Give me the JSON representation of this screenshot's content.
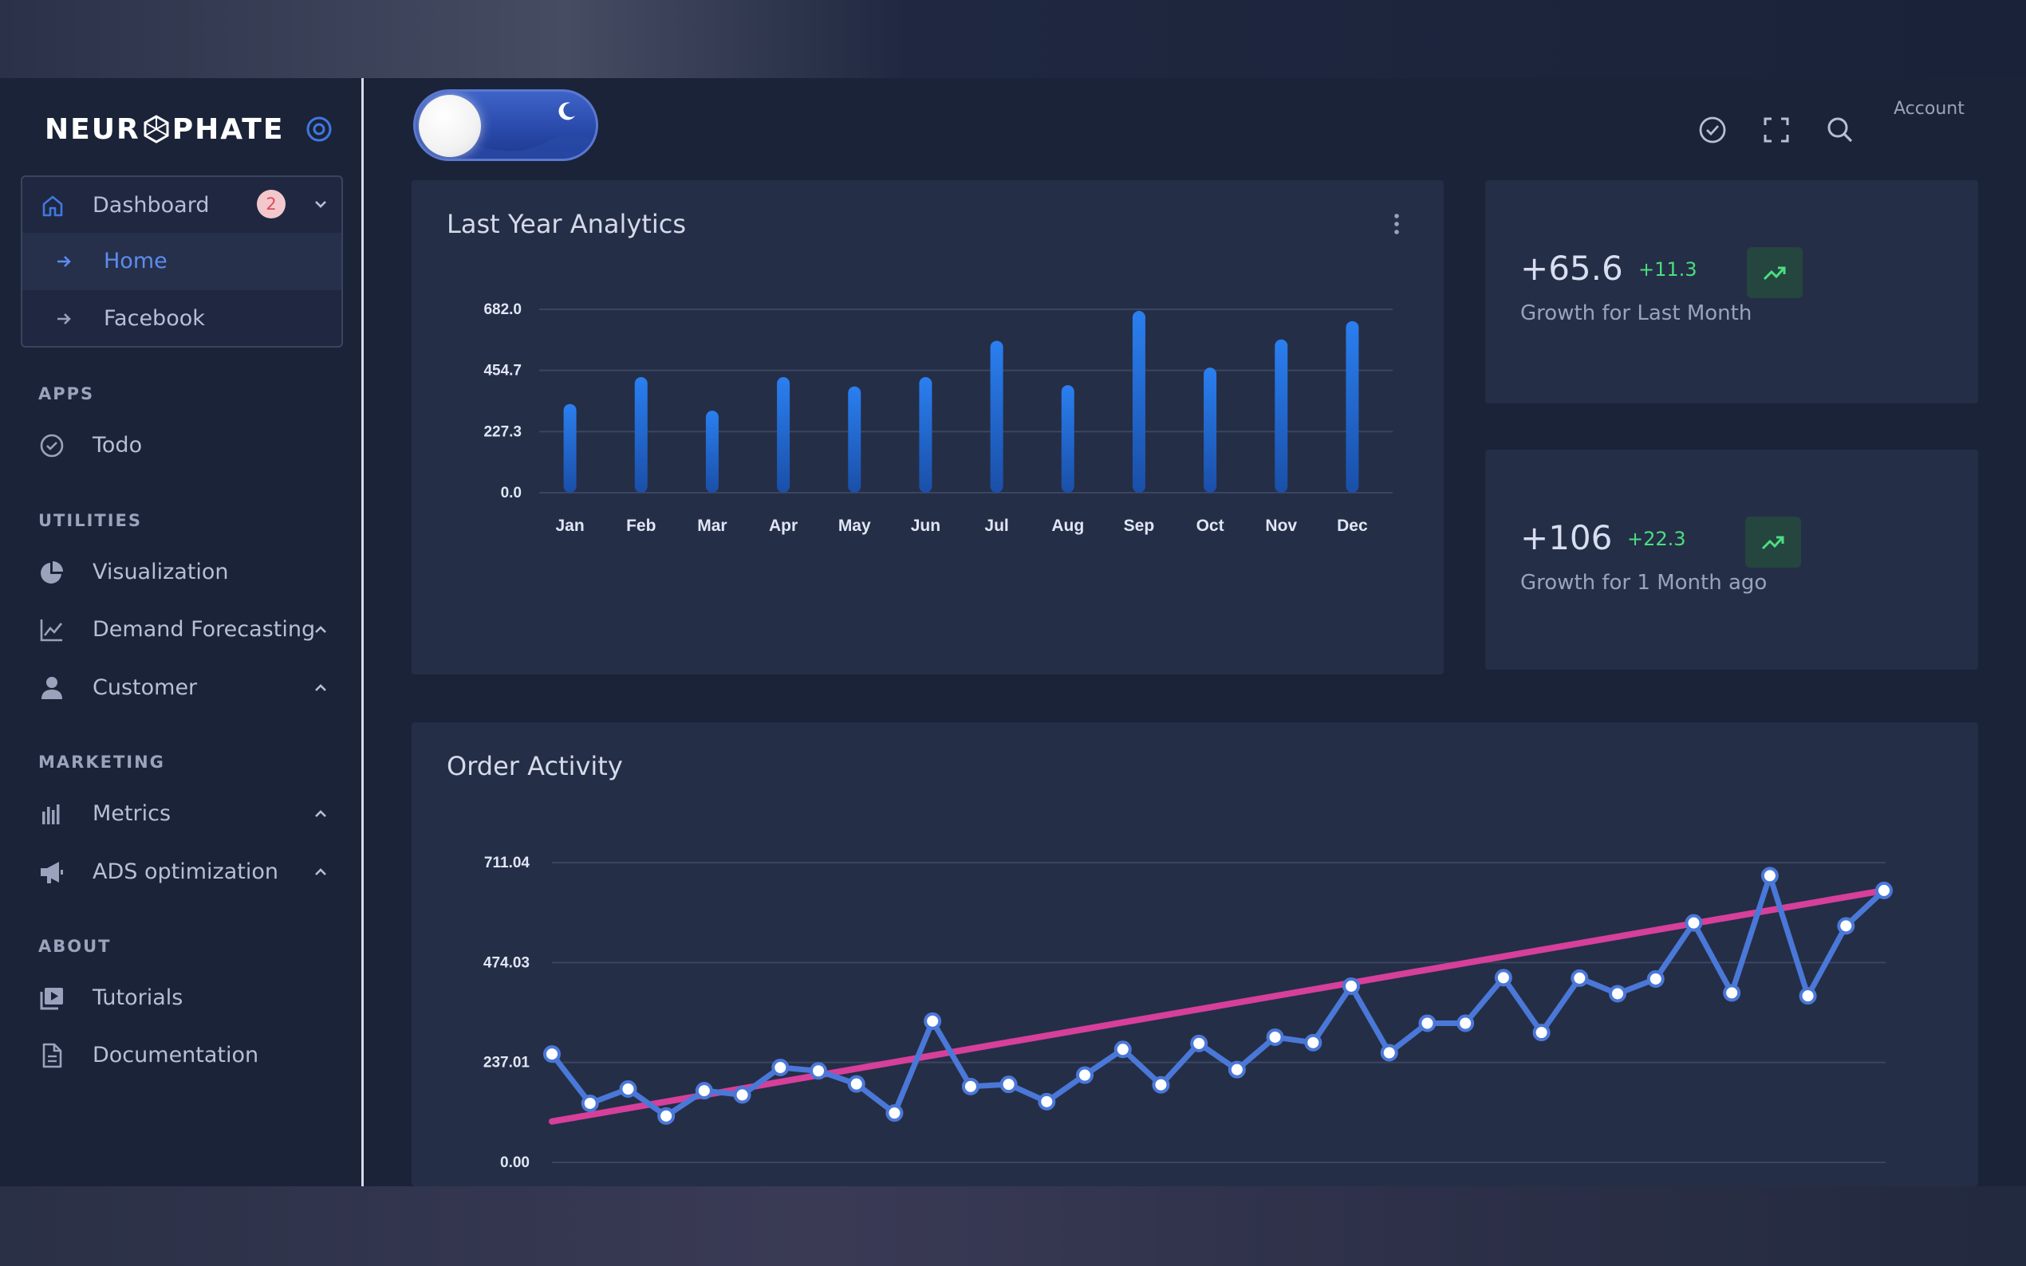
{
  "brand": {
    "name_left": "NEUR",
    "name_right": "PHATE"
  },
  "sidebar": {
    "dashboard": {
      "label": "Dashboard",
      "badge": "2",
      "children": [
        {
          "label": "Home"
        },
        {
          "label": "Facebook"
        }
      ]
    },
    "sections": [
      {
        "title": "APPS",
        "items": [
          {
            "label": "Todo",
            "icon": "check-circle-icon"
          }
        ]
      },
      {
        "title": "UTILITIES",
        "items": [
          {
            "label": "Visualization",
            "icon": "pie-chart-icon"
          },
          {
            "label": "Demand Forecasting",
            "icon": "line-chart-icon"
          },
          {
            "label": "Customer",
            "icon": "person-icon"
          }
        ]
      },
      {
        "title": "MARKETING",
        "items": [
          {
            "label": "Metrics",
            "icon": "bar-chart-icon"
          },
          {
            "label": "ADS optimization",
            "icon": "megaphone-icon"
          }
        ]
      },
      {
        "title": "ABOUT",
        "items": [
          {
            "label": "Tutorials",
            "icon": "video-library-icon"
          },
          {
            "label": "Documentation",
            "icon": "document-icon"
          }
        ]
      }
    ]
  },
  "header": {
    "account_label": "Account"
  },
  "colors": {
    "accent": "#3f78e0",
    "bar": "#1e6fe0",
    "trend": "#d63f9a",
    "positive": "#4ade80",
    "badge": "#e04a5a"
  },
  "stats": [
    {
      "value": "+65.6",
      "delta": "+11.3",
      "label": "Growth for Last Month"
    },
    {
      "value": "+106",
      "delta": "+22.3",
      "label": "Growth for 1 Month ago"
    }
  ],
  "chart_data": [
    {
      "type": "bar",
      "title": "Last Year Analytics",
      "categories": [
        "Jan",
        "Feb",
        "Mar",
        "Apr",
        "May",
        "Jun",
        "Jul",
        "Aug",
        "Sep",
        "Oct",
        "Nov",
        "Dec"
      ],
      "values": [
        330,
        430,
        305,
        430,
        395,
        430,
        565,
        400,
        676,
        465,
        570,
        638
      ],
      "yticks": [
        "0.0",
        "227.3",
        "454.7",
        "682.0"
      ],
      "ylim": [
        0,
        682.0
      ],
      "grid": true
    },
    {
      "type": "line",
      "title": "Order Activity",
      "yticks": [
        "0.00",
        "237.01",
        "474.03",
        "711.04"
      ],
      "ylim": [
        0,
        711.04
      ],
      "grid": true,
      "series": [
        {
          "values": [
            257,
            140,
            174,
            110,
            170,
            160,
            225,
            217,
            186,
            117,
            335,
            180,
            185,
            144,
            207,
            268,
            184,
            282,
            220,
            297,
            284,
            418,
            260,
            330,
            330,
            438,
            308,
            437,
            400,
            435,
            568,
            402,
            680,
            395,
            561,
            645
          ]
        },
        {
          "type": "trendline",
          "values": [
            97,
            645
          ]
        }
      ]
    }
  ]
}
